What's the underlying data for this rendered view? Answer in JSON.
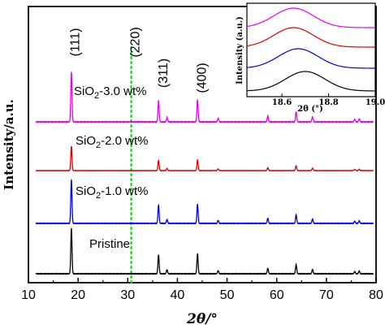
{
  "chart_data": {
    "type": "line",
    "xlabel": "2θ/°",
    "ylabel": "Intensity/a.u.",
    "xlim": [
      10,
      80
    ],
    "xticks": [
      10,
      20,
      30,
      40,
      50,
      60,
      70,
      80
    ],
    "xtick_labels": [
      "10",
      "20",
      "30",
      "40",
      "50",
      "60",
      "70",
      "80"
    ],
    "grid": false,
    "reference_line": {
      "x": 30.7,
      "color": "#00e000",
      "style": "dotted"
    },
    "peak_labels": [
      {
        "text": "(111)",
        "x": 18.6
      },
      {
        "text": "(220)",
        "x": 30.7
      },
      {
        "text": "(311)",
        "x": 36.3
      },
      {
        "text": "(400)",
        "x": 44.1
      }
    ],
    "peaks": [
      {
        "x": 18.65,
        "rel": 1.0
      },
      {
        "x": 36.2,
        "rel": 0.42
      },
      {
        "x": 37.9,
        "rel": 0.09
      },
      {
        "x": 44.05,
        "rel": 0.44
      },
      {
        "x": 48.2,
        "rel": 0.07
      },
      {
        "x": 58.2,
        "rel": 0.12
      },
      {
        "x": 63.9,
        "rel": 0.2
      },
      {
        "x": 67.2,
        "rel": 0.1
      },
      {
        "x": 75.7,
        "rel": 0.05
      },
      {
        "x": 76.6,
        "rel": 0.06
      }
    ],
    "series": [
      {
        "name": "Pristine",
        "color": "#000000",
        "label_pre": "Pristine",
        "label_sub": "",
        "label_post": ""
      },
      {
        "name": "SiO2-1.0 wt%",
        "color": "#0000dd",
        "label_pre": "SiO",
        "label_sub": "2",
        "label_post": "-1.0 wt%"
      },
      {
        "name": "SiO2-2.0 wt%",
        "color": "#e00000",
        "label_pre": "SiO",
        "label_sub": "2",
        "label_post": "-2.0 wt%"
      },
      {
        "name": "SiO2-3.0 wt%",
        "color": "#ee00ee",
        "label_pre": "SiO",
        "label_sub": "2",
        "label_post": "-3.0 wt%"
      }
    ],
    "inset": {
      "xlabel": "2θ (°)",
      "ylabel": "Intensity (a.u.)",
      "xlim": [
        18.45,
        19.0
      ],
      "xticks": [
        18.6,
        18.8,
        19.0
      ],
      "xtick_labels": [
        "18.6",
        "18.8",
        "19.0"
      ],
      "peak_centers": [
        {
          "series": "Pristine",
          "x": 18.7
        },
        {
          "series": "SiO2-1.0 wt%",
          "x": 18.67
        },
        {
          "series": "SiO2-2.0 wt%",
          "x": 18.65
        },
        {
          "series": "SiO2-3.0 wt%",
          "x": 18.65
        }
      ]
    }
  }
}
